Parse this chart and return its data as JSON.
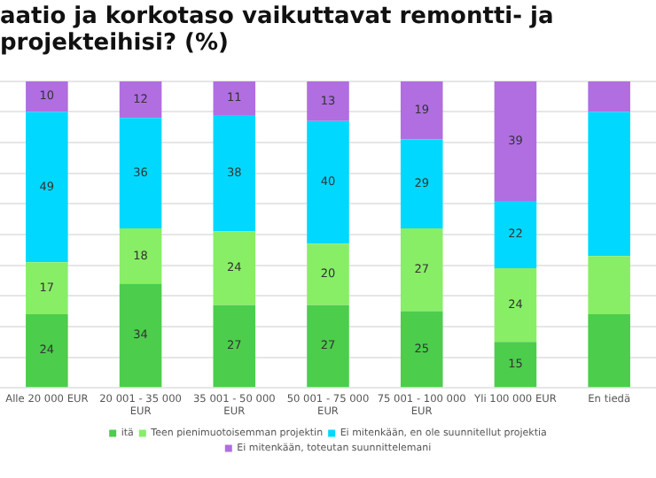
{
  "chart_data": {
    "type": "bar",
    "stacked": true,
    "title": [
      "aatio ja korkotaso vaikuttavat remontti- ja",
      "projekteihisi? (%)"
    ],
    "categories": [
      "Alle 20 000 EUR",
      "20 001 - 35 000 EUR",
      "35 001 - 50 000 EUR",
      "50 001 - 75 000 EUR",
      "75 001 - 100 000 EUR",
      "Yli 100 000 EUR",
      "En tiedä"
    ],
    "series": [
      {
        "name": "itä",
        "color": "#4ccd4c",
        "values": [
          24,
          34,
          27,
          27,
          25,
          15,
          24
        ],
        "value_labels": [
          "24",
          "34",
          "27",
          "27",
          "25",
          "15",
          null
        ]
      },
      {
        "name": "Teen pienimuotoisemman projektin",
        "color": "#88ee66",
        "values": [
          17,
          18,
          24,
          20,
          27,
          24,
          19
        ],
        "value_labels": [
          "17",
          "18",
          "24",
          "20",
          "27",
          "24",
          null
        ]
      },
      {
        "name": "Ei mitenkään, en ole suunnitellut projektia",
        "color": "#00d8ff",
        "values": [
          49,
          36,
          38,
          40,
          29,
          22,
          47
        ],
        "value_labels": [
          "49",
          "36",
          "38",
          "40",
          "29",
          "22",
          null
        ]
      },
      {
        "name": "Ei mitenkään, toteutan suunnittelemani",
        "color": "#b06ee0",
        "values": [
          10,
          12,
          11,
          13,
          19,
          39,
          10
        ],
        "value_labels": [
          "10",
          "12",
          "11",
          "13",
          "19",
          "39",
          null
        ]
      }
    ],
    "ylim": [
      0,
      100
    ],
    "yticks": [
      0,
      10,
      20,
      30,
      40,
      50,
      60,
      70,
      80,
      90,
      100
    ],
    "grid": "y",
    "tick_labels": "x",
    "legend": "bottom"
  }
}
